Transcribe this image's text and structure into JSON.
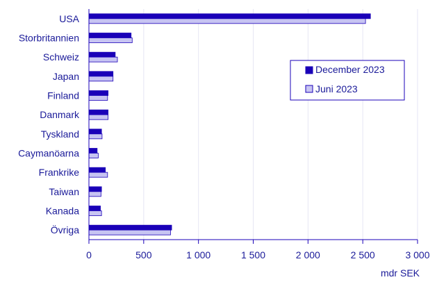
{
  "chart_data": {
    "type": "bar",
    "orientation": "horizontal",
    "categories": [
      "USA",
      "Storbritannien",
      "Schweiz",
      "Japan",
      "Finland",
      "Danmark",
      "Tyskland",
      "Caymanöarna",
      "Frankrike",
      "Taiwan",
      "Kanada",
      "Övriga"
    ],
    "series": [
      {
        "name": "December 2023",
        "values": [
          2570,
          385,
          240,
          220,
          175,
          175,
          115,
          75,
          150,
          115,
          105,
          755
        ]
      },
      {
        "name": "Juni 2023",
        "values": [
          2525,
          395,
          260,
          220,
          170,
          175,
          120,
          85,
          170,
          110,
          115,
          745
        ]
      }
    ],
    "xlim": [
      0,
      3000
    ],
    "xticks": [
      0,
      500,
      1000,
      1500,
      2000,
      2500,
      3000
    ],
    "xtick_labels": [
      "0",
      "500",
      "1 000",
      "1 500",
      "2 000",
      "2 500",
      "3 000"
    ],
    "xunit": "mdr SEK",
    "grid": "vertical",
    "legend": "right",
    "colors": {
      "December 2023": "#1a00b8",
      "Juni 2023": "#c7c4f2",
      "stroke": "#1a00b8",
      "text": "#1a1a99",
      "grid": "#e6e6f4"
    }
  }
}
